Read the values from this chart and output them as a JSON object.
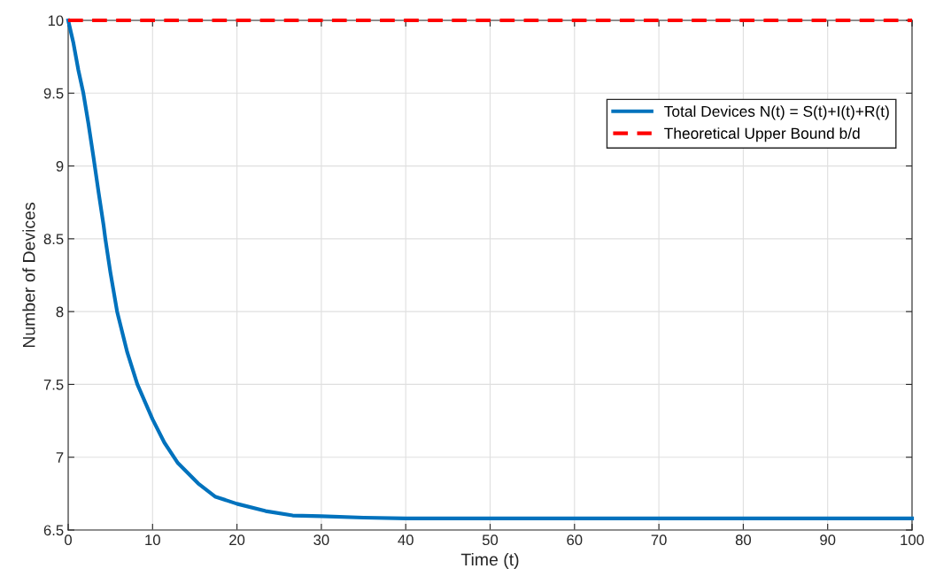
{
  "chart_data": {
    "type": "line",
    "xlabel": "Time (t)",
    "ylabel": "Number of Devices",
    "xlim": [
      0,
      100
    ],
    "ylim": [
      6.5,
      10
    ],
    "xticks": [
      0,
      10,
      20,
      30,
      40,
      50,
      60,
      70,
      80,
      90,
      100
    ],
    "yticks": [
      6.5,
      7,
      7.5,
      8,
      8.5,
      9,
      9.5,
      10
    ],
    "grid": true,
    "legend": "top right",
    "series": [
      {
        "name": "Total Devices N(t) = S(t)+I(t)+R(t)",
        "color": "#0072bd",
        "line_style": "solid",
        "x": [
          0,
          0.6,
          1.2,
          1.8,
          2.4,
          3,
          3.6,
          4.2,
          4.4,
          5,
          5.8,
          7,
          8.2,
          10,
          11.4,
          13,
          15.4,
          17.4,
          20,
          23.4,
          26.6,
          30,
          35,
          40,
          50,
          60,
          70,
          80,
          90,
          100
        ],
        "values": [
          10,
          9.85,
          9.66,
          9.5,
          9.29,
          9.06,
          8.82,
          8.59,
          8.5,
          8.27,
          8.0,
          7.72,
          7.5,
          7.26,
          7.1,
          6.96,
          6.82,
          6.73,
          6.68,
          6.63,
          6.6,
          6.595,
          6.585,
          6.58,
          6.58,
          6.58,
          6.58,
          6.58,
          6.58,
          6.58
        ]
      },
      {
        "name": "Theoretical Upper Bound b/d",
        "color": "#ff0000",
        "line_style": "dashed",
        "x": [
          0,
          100
        ],
        "values": [
          10,
          10
        ]
      }
    ]
  }
}
